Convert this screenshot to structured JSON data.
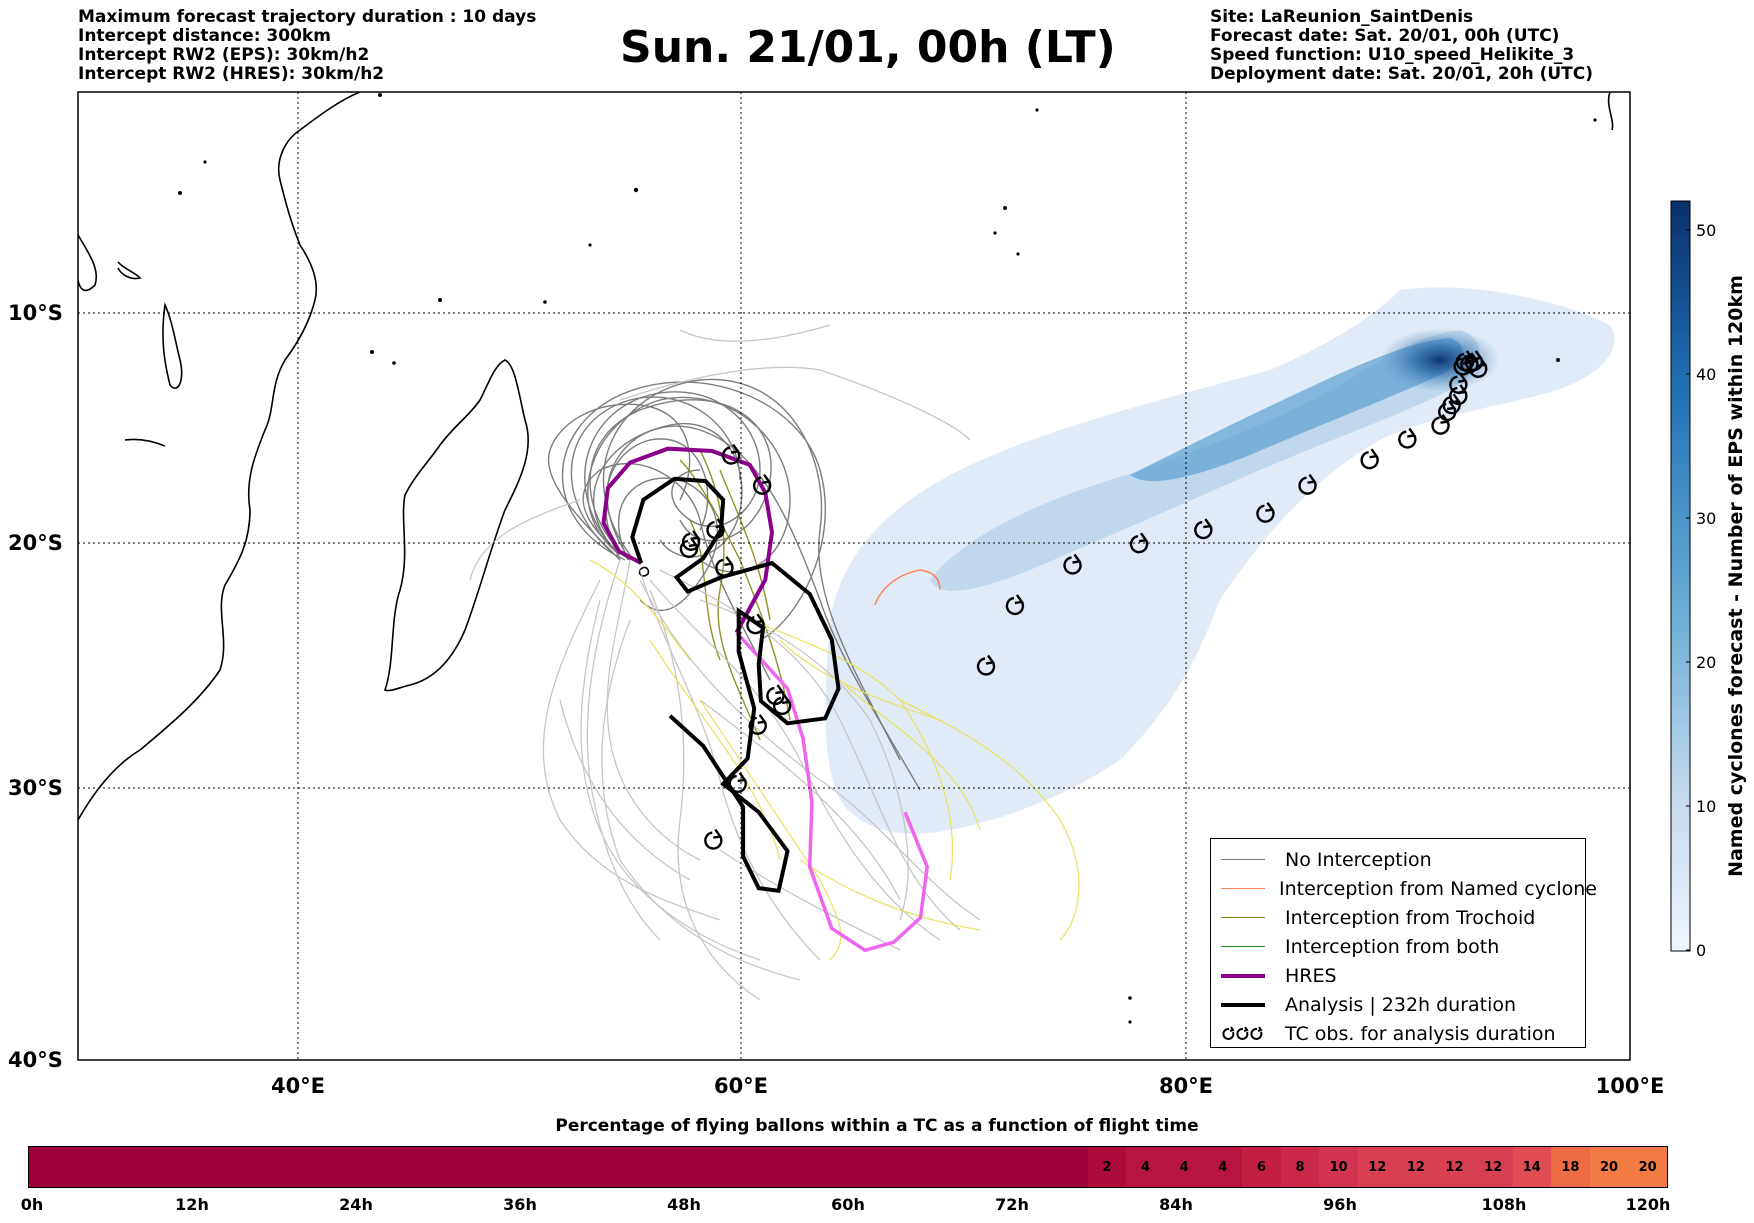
{
  "header_left": [
    "Maximum forecast trajectory duration : 10 days",
    "Intercept distance: 300km",
    "Intercept RW2 (EPS):  30km/h2",
    "Intercept RW2 (HRES): 30km/h2"
  ],
  "header_right": [
    "Site: LaReunion_SaintDenis",
    "Forecast date: Sat. 20/01, 00h (UTC)",
    "Speed function: U10_speed_Helikite_3",
    "Deployment date: Sat. 20/01, 20h (UTC)"
  ],
  "title": "Sun. 21/01, 00h (LT)",
  "map": {
    "lon_range": [
      30,
      100
    ],
    "lat_range": [
      -40,
      0
    ],
    "lon_ticks": [
      "40°E",
      "60°E",
      "80°E",
      "100°E"
    ],
    "lat_ticks": [
      "10°S",
      "20°S",
      "30°S",
      "40°S"
    ],
    "gridlines": "dotted"
  },
  "colorbar": {
    "label": "Named cyclones forecast - Number of EPS within 120km",
    "ticks": [
      "0",
      "10",
      "20",
      "30",
      "40",
      "50"
    ],
    "range": [
      0,
      52
    ],
    "colormap": [
      "#e3eef8",
      "#9cc5e0",
      "#4c8fc4",
      "#1c5a9c",
      "#08306b"
    ]
  },
  "legend": {
    "items": [
      {
        "label": "No Interception",
        "color": "#777777",
        "style": "thin"
      },
      {
        "label": "Interception from Named cyclone",
        "color": "#ff7f50",
        "style": "thin"
      },
      {
        "label": "Interception from Trochoid",
        "color": "#808000",
        "style": "thin"
      },
      {
        "label": "Interception from both",
        "color": "#228b22",
        "style": "thin"
      },
      {
        "label": "HRES",
        "color": "#8b008b",
        "style": "thick"
      },
      {
        "label": "Analysis | 232h duration",
        "color": "#000000",
        "style": "thick"
      },
      {
        "label": "TC obs. for analysis duration",
        "color": "#000000",
        "style": "cyclone-icon"
      }
    ]
  },
  "cyclone_track": [
    {
      "lon": 92.6,
      "lat": -12.1
    },
    {
      "lon": 93.0,
      "lat": -12.1
    },
    {
      "lon": 93.2,
      "lat": -12.4
    },
    {
      "lon": 92.5,
      "lat": -12.3
    },
    {
      "lon": 92.8,
      "lat": -12.2
    },
    {
      "lon": 92.3,
      "lat": -13.1
    },
    {
      "lon": 92.3,
      "lat": -13.6
    },
    {
      "lon": 92.0,
      "lat": -14.0
    },
    {
      "lon": 91.8,
      "lat": -14.3
    },
    {
      "lon": 91.5,
      "lat": -14.9
    },
    {
      "lon": 90.0,
      "lat": -15.5
    },
    {
      "lon": 88.3,
      "lat": -16.4
    },
    {
      "lon": 85.5,
      "lat": -17.5
    },
    {
      "lon": 83.6,
      "lat": -18.7
    },
    {
      "lon": 80.8,
      "lat": -19.4
    },
    {
      "lon": 77.9,
      "lat": -20.0
    },
    {
      "lon": 74.9,
      "lat": -20.9
    },
    {
      "lon": 72.3,
      "lat": -22.6
    },
    {
      "lon": 71.0,
      "lat": -25.1
    },
    {
      "lon": 59.5,
      "lat": -16.2
    },
    {
      "lon": 60.9,
      "lat": -17.5
    },
    {
      "lon": 58.8,
      "lat": -19.4
    },
    {
      "lon": 57.7,
      "lat": -19.9
    },
    {
      "lon": 57.6,
      "lat": -20.2
    },
    {
      "lon": 59.2,
      "lat": -21.0
    },
    {
      "lon": 60.6,
      "lat": -23.4
    },
    {
      "lon": 61.5,
      "lat": -26.3
    },
    {
      "lon": 61.8,
      "lat": -26.7
    },
    {
      "lon": 60.7,
      "lat": -27.5
    },
    {
      "lon": 59.8,
      "lat": -29.8
    },
    {
      "lon": 58.7,
      "lat": -32.0
    }
  ],
  "hres_track": [
    {
      "lon": 55.4,
      "lat": -20.8
    },
    {
      "lon": 54.4,
      "lat": -20.3
    },
    {
      "lon": 53.7,
      "lat": -19.1
    },
    {
      "lon": 53.9,
      "lat": -17.6
    },
    {
      "lon": 54.9,
      "lat": -16.5
    },
    {
      "lon": 56.6,
      "lat": -15.9
    },
    {
      "lon": 58.6,
      "lat": -16.0
    },
    {
      "lon": 60.3,
      "lat": -16.6
    },
    {
      "lon": 61.0,
      "lat": -17.8
    },
    {
      "lon": 61.3,
      "lat": -19.5
    },
    {
      "lon": 61.0,
      "lat": -21.5
    },
    {
      "lon": 59.7,
      "lat": -23.7
    },
    {
      "lon": 60.8,
      "lat": -24.8
    },
    {
      "lon": 62.0,
      "lat": -26.0
    },
    {
      "lon": 62.7,
      "lat": -28.0
    },
    {
      "lon": 63.1,
      "lat": -30.5
    },
    {
      "lon": 63.0,
      "lat": -33.0
    },
    {
      "lon": 64.0,
      "lat": -35.3
    },
    {
      "lon": 65.5,
      "lat": -36.1
    },
    {
      "lon": 66.8,
      "lat": -35.8
    },
    {
      "lon": 68.0,
      "lat": -34.9
    },
    {
      "lon": 68.3,
      "lat": -33.0
    },
    {
      "lon": 67.3,
      "lat": -30.9
    }
  ],
  "analysis_track": [
    {
      "lon": 55.4,
      "lat": -20.8
    },
    {
      "lon": 55.0,
      "lat": -19.7
    },
    {
      "lon": 55.5,
      "lat": -18.1
    },
    {
      "lon": 56.9,
      "lat": -17.2
    },
    {
      "lon": 58.3,
      "lat": -17.3
    },
    {
      "lon": 59.1,
      "lat": -18.1
    },
    {
      "lon": 59.0,
      "lat": -19.4
    },
    {
      "lon": 58.2,
      "lat": -20.6
    },
    {
      "lon": 57.0,
      "lat": -21.4
    },
    {
      "lon": 57.5,
      "lat": -22.0
    },
    {
      "lon": 59.0,
      "lat": -21.4
    },
    {
      "lon": 61.3,
      "lat": -20.8
    },
    {
      "lon": 63.0,
      "lat": -22.1
    },
    {
      "lon": 64.0,
      "lat": -24.0
    },
    {
      "lon": 64.3,
      "lat": -26.0
    },
    {
      "lon": 63.7,
      "lat": -27.2
    },
    {
      "lon": 62.0,
      "lat": -27.4
    },
    {
      "lon": 60.8,
      "lat": -26.5
    },
    {
      "lon": 60.7,
      "lat": -25.0
    },
    {
      "lon": 60.9,
      "lat": -23.5
    },
    {
      "lon": 59.8,
      "lat": -22.8
    },
    {
      "lon": 59.8,
      "lat": -24.5
    },
    {
      "lon": 60.5,
      "lat": -26.8
    },
    {
      "lon": 60.2,
      "lat": -28.8
    },
    {
      "lon": 59.1,
      "lat": -29.8
    },
    {
      "lon": 60.7,
      "lat": -30.9
    },
    {
      "lon": 62.0,
      "lat": -32.4
    },
    {
      "lon": 61.6,
      "lat": -33.9
    },
    {
      "lon": 60.7,
      "lat": -33.8
    },
    {
      "lon": 60.0,
      "lat": -32.6
    },
    {
      "lon": 60.0,
      "lat": -30.7
    },
    {
      "lon": 58.2,
      "lat": -28.3
    },
    {
      "lon": 56.7,
      "lat": -27.1
    }
  ],
  "balloon_bar": {
    "title": "Percentage of flying ballons within a TC as a function of flight time",
    "ticks": [
      "0h",
      "12h",
      "24h",
      "36h",
      "48h",
      "60h",
      "72h",
      "84h",
      "96h",
      "108h",
      "120h"
    ],
    "segments_after_72h": [
      "",
      "2",
      "4",
      "4",
      "4",
      "6",
      "8",
      "10",
      "12",
      "12",
      "12",
      "12",
      "14",
      "18",
      "20",
      "20"
    ],
    "base_color": "#9e003a"
  }
}
